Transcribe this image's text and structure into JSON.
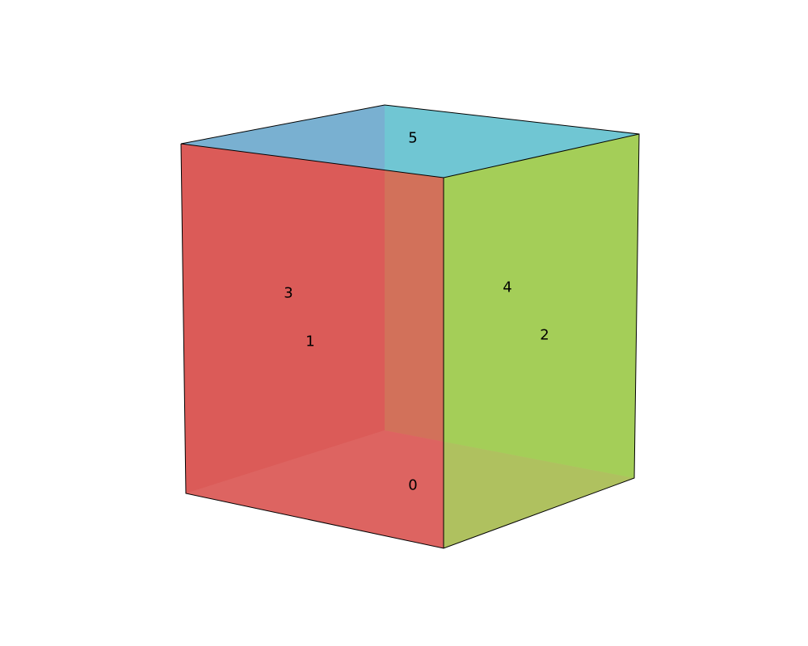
{
  "cube": {
    "face_labels": {
      "bottom": "0",
      "front_left": "1",
      "front_right": "2",
      "back_left": "3",
      "back_right": "4",
      "top": "5"
    },
    "colors": {
      "red_faces": "#d9534f",
      "green_faces": "#9dcb4d",
      "blue_faces": "#5bc0eb",
      "edges": "#000000"
    }
  }
}
